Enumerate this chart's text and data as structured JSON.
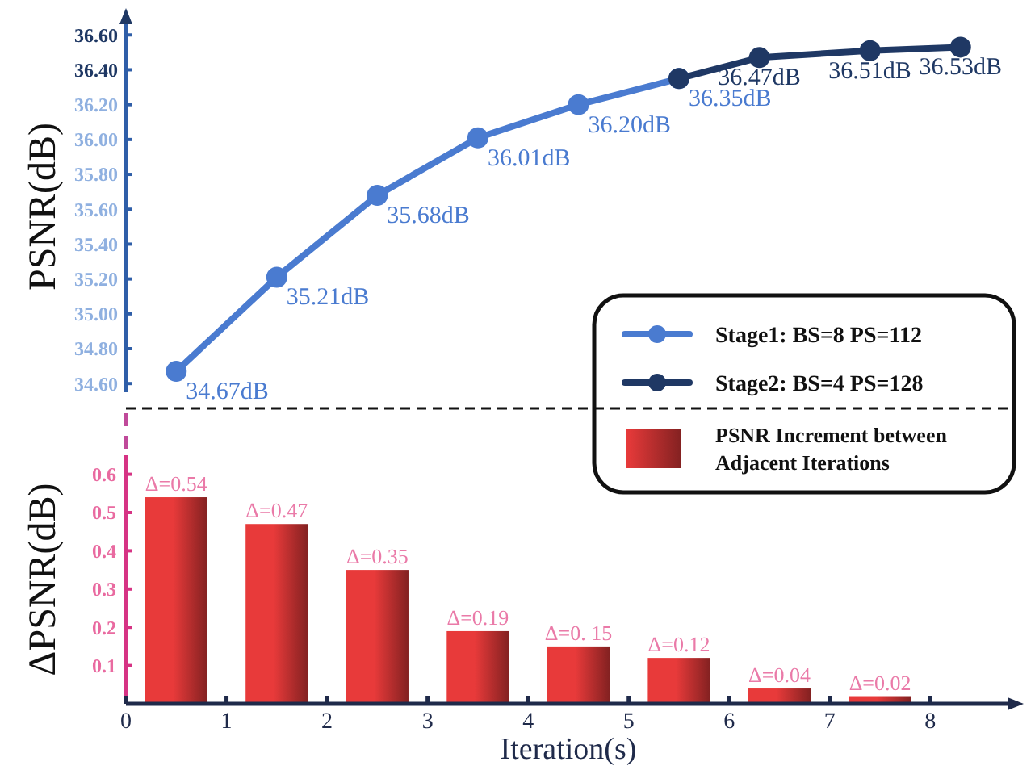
{
  "chart_data": [
    {
      "type": "line",
      "ylabel": "PSNR(dB)",
      "xlim": [
        0,
        8.8
      ],
      "ylim": [
        34.55,
        36.68
      ],
      "yticks": [
        {
          "value": 34.6,
          "label": "34.60"
        },
        {
          "value": 34.8,
          "label": "34.80"
        },
        {
          "value": 35,
          "label": "35.00"
        },
        {
          "value": 35.2,
          "label": "35.20"
        },
        {
          "value": 35.4,
          "label": "35.40"
        },
        {
          "value": 35.6,
          "label": "35.60"
        },
        {
          "value": 35.8,
          "label": "35.80"
        },
        {
          "value": 36,
          "label": "36.00"
        },
        {
          "value": 36.2,
          "label": "36.20"
        },
        {
          "value": 36.4,
          "label": "36.40"
        },
        {
          "value": 36.6,
          "label": "36.60"
        }
      ],
      "tick_labels": "y",
      "legend": "bottom right",
      "marker": "circle",
      "line_style": "solid",
      "series": [
        {
          "name": "Stage1: BS=8 PS=112",
          "color": "#4a7bd0",
          "x": [
            0.5,
            1.5,
            2.5,
            3.5,
            4.5,
            5.5
          ],
          "values": [
            34.67,
            35.21,
            35.68,
            36.01,
            36.2,
            36.35
          ],
          "value_labels": [
            "34.67dB",
            "35.21dB",
            "35.68dB",
            "36.01dB",
            "36.20dB",
            "36.35dB"
          ]
        },
        {
          "name": "Stage2: BS=4 PS=128",
          "color": "#1f3864",
          "x": [
            5.5,
            6.3,
            7.4,
            8.3
          ],
          "values": [
            36.35,
            36.47,
            36.51,
            36.53
          ],
          "value_labels": [
            null,
            "36.47dB",
            "36.51dB",
            "36.53dB"
          ]
        }
      ]
    },
    {
      "type": "bar",
      "xlabel": "Iteration(s)",
      "ylabel": "ΔPSNR(dB)",
      "x": [
        0.5,
        1.5,
        2.5,
        3.5,
        4.5,
        5.5,
        6.5,
        7.5
      ],
      "xlim": [
        0,
        8.8
      ],
      "xticks": [
        0,
        1,
        2,
        3,
        4,
        5,
        6,
        7,
        8
      ],
      "ylim": [
        0,
        0.65
      ],
      "yticks": [
        0.1,
        0.2,
        0.3,
        0.4,
        0.5,
        0.6
      ],
      "legend": "top right",
      "series": [
        {
          "name": "PSNR Increment between Adjacent Iterations",
          "color": "#e83a3a",
          "values": [
            0.54,
            0.47,
            0.35,
            0.19,
            0.15,
            0.12,
            0.04,
            0.02
          ],
          "value_labels": [
            "Δ=0.54",
            "Δ=0.47",
            "Δ=0.35",
            "Δ=0.19",
            "Δ=0. 15",
            "Δ=0.12",
            "Δ=0.04",
            "Δ=0.02"
          ]
        }
      ]
    }
  ]
}
